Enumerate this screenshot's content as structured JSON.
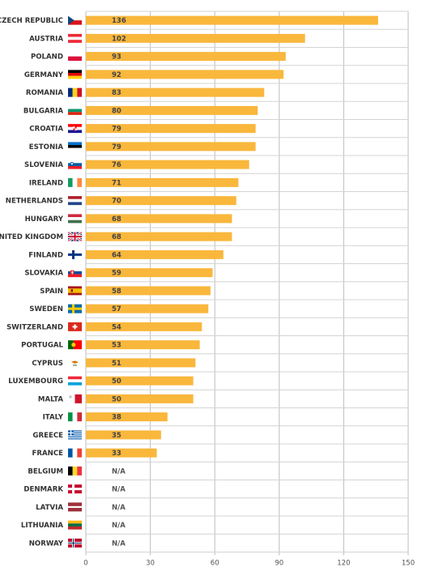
{
  "chart_data": {
    "type": "bar",
    "orientation": "horizontal",
    "title": "",
    "xlabel": "",
    "ylabel": "",
    "xlim": [
      0,
      150
    ],
    "ticks": [
      "0",
      "30",
      "60",
      "90",
      "120",
      "150"
    ],
    "grid": true,
    "bar_color": "#F9B73C",
    "categories": [
      "CZECH REPUBLIC",
      "AUSTRIA",
      "POLAND",
      "GERMANY",
      "ROMANIA",
      "BULGARIA",
      "CROATIA",
      "ESTONIA",
      "SLOVENIA",
      "IRELAND",
      "NETHERLANDS",
      "HUNGARY",
      "UNITED KINGDOM",
      "FINLAND",
      "SLOVAKIA",
      "SPAIN",
      "SWEDEN",
      "SWITZERLAND",
      "PORTUGAL",
      "CYPRUS",
      "LUXEMBOURG",
      "MALTA",
      "ITALY",
      "GREECE",
      "FRANCE",
      "BELGIUM",
      "DENMARK",
      "LATVIA",
      "LITHUANIA",
      "NORWAY"
    ],
    "values": [
      136,
      102,
      93,
      92,
      83,
      80,
      79,
      79,
      76,
      71,
      70,
      68,
      68,
      64,
      59,
      58,
      57,
      54,
      53,
      51,
      50,
      50,
      38,
      35,
      33,
      null,
      null,
      null,
      null,
      null
    ],
    "value_labels": [
      "136",
      "102",
      "93",
      "92",
      "83",
      "80",
      "79",
      "79",
      "76",
      "71",
      "70",
      "68",
      "68",
      "64",
      "59",
      "58",
      "57",
      "54",
      "53",
      "51",
      "50",
      "50",
      "38",
      "35",
      "33",
      "N/A",
      "N/A",
      "N/A",
      "N/A",
      "N/A"
    ],
    "flag_icons": [
      "czech-flag-icon",
      "austria-flag-icon",
      "poland-flag-icon",
      "germany-flag-icon",
      "romania-flag-icon",
      "bulgaria-flag-icon",
      "croatia-flag-icon",
      "estonia-flag-icon",
      "slovenia-flag-icon",
      "ireland-flag-icon",
      "netherlands-flag-icon",
      "hungary-flag-icon",
      "united-kingdom-flag-icon",
      "finland-flag-icon",
      "slovakia-flag-icon",
      "spain-flag-icon",
      "sweden-flag-icon",
      "switzerland-flag-icon",
      "portugal-flag-icon",
      "cyprus-flag-icon",
      "luxembourg-flag-icon",
      "malta-flag-icon",
      "italy-flag-icon",
      "greece-flag-icon",
      "france-flag-icon",
      "belgium-flag-icon",
      "denmark-flag-icon",
      "latvia-flag-icon",
      "lithuania-flag-icon",
      "norway-flag-icon"
    ]
  }
}
